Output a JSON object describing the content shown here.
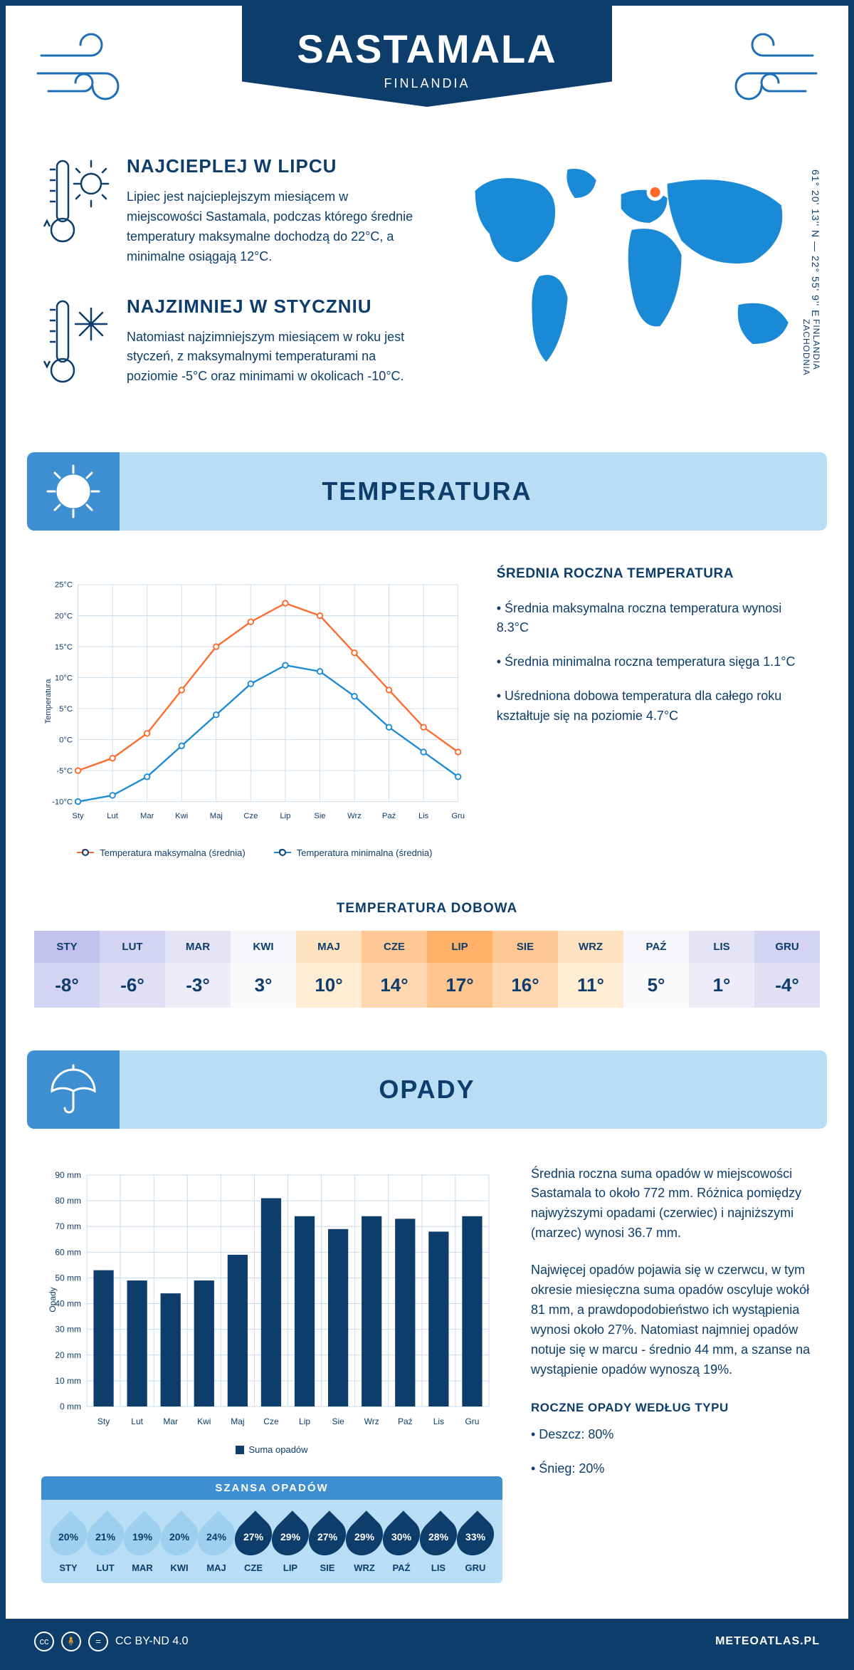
{
  "header": {
    "city": "SASTAMALA",
    "country": "FINLANDIA"
  },
  "coords": "61° 20' 13'' N — 22° 55' 9'' E",
  "region": "FINLANDIA ZACHODNIA",
  "map": {
    "land_color": "#1b8ad6",
    "marker_color": "#ff6a2b",
    "marker_border": "#ffffff"
  },
  "extremes": {
    "hottest": {
      "title": "NAJCIEPLEJ W LIPCU",
      "desc": "Lipiec jest najcieplejszym miesiącem w miejscowości Sastamala, podczas którego średnie temperatury maksymalne dochodzą do 22°C, a minimalne osiągają 12°C."
    },
    "coldest": {
      "title": "NAJZIMNIEJ W STYCZNIU",
      "desc": "Natomiast najzimniejszym miesiącem w roku jest styczeń, z maksymalnymi temperaturami na poziomie -5°C oraz minimami w okolicach -10°C."
    }
  },
  "temperature_section": {
    "title": "TEMPERATURA",
    "banner_bg": "#b8ddf5",
    "banner_icon_bg": "#3d8fd1",
    "chart": {
      "type": "line",
      "months": [
        "Sty",
        "Lut",
        "Mar",
        "Kwi",
        "Maj",
        "Cze",
        "Lip",
        "Sie",
        "Wrz",
        "Paź",
        "Lis",
        "Gru"
      ],
      "ylabel": "Temperatura",
      "ylim": [
        -10,
        25
      ],
      "ytick_step": 5,
      "ytick_suffix": "°C",
      "grid_color": "#c9dcea",
      "series": [
        {
          "name": "Temperatura maksymalna (średnia)",
          "color": "#ff6a2b",
          "values": [
            -5,
            -3,
            1,
            8,
            15,
            19,
            22,
            20,
            14,
            8,
            2,
            -2
          ]
        },
        {
          "name": "Temperatura minimalna (średnia)",
          "color": "#1b8ad6",
          "values": [
            -10,
            -9,
            -6,
            -1,
            4,
            9,
            12,
            11,
            7,
            2,
            -2,
            -6
          ]
        }
      ]
    },
    "annual": {
      "heading": "ŚREDNIA ROCZNA TEMPERATURA",
      "bullets": [
        "Średnia maksymalna roczna temperatura wynosi 8.3°C",
        "Średnia minimalna roczna temperatura sięga 1.1°C",
        "Uśredniona dobowa temperatura dla całego roku kształtuje się na poziomie 4.7°C"
      ]
    },
    "daily": {
      "title": "TEMPERATURA DOBOWA",
      "months": [
        "STY",
        "LUT",
        "MAR",
        "KWI",
        "MAJ",
        "CZE",
        "LIP",
        "SIE",
        "WRZ",
        "PAŹ",
        "LIS",
        "GRU"
      ],
      "values": [
        "-8°",
        "-6°",
        "-3°",
        "3°",
        "10°",
        "14°",
        "17°",
        "16°",
        "11°",
        "5°",
        "1°",
        "-4°"
      ],
      "header_colors": [
        "#c3c1ed",
        "#d4d3f1",
        "#e4e3f5",
        "#f5f5fa",
        "#ffe2c0",
        "#ffc794",
        "#ffb16a",
        "#ffc794",
        "#ffe2c0",
        "#f5f5fa",
        "#e4e3f5",
        "#d4d3f1"
      ],
      "value_colors": [
        "#d4d3f1",
        "#e0dff4",
        "#edecf8",
        "#fafafd",
        "#ffecd5",
        "#ffd8b1",
        "#ffc58f",
        "#ffd8b1",
        "#ffecd5",
        "#fafafd",
        "#edecf8",
        "#e0dff4"
      ]
    }
  },
  "precipitation_section": {
    "title": "OPADY",
    "chart": {
      "type": "bar",
      "months": [
        "Sty",
        "Lut",
        "Mar",
        "Kwi",
        "Maj",
        "Cze",
        "Lip",
        "Sie",
        "Wrz",
        "Paź",
        "Lis",
        "Gru"
      ],
      "ylabel": "Opady",
      "ylim": [
        0,
        90
      ],
      "ytick_step": 10,
      "ytick_suffix": " mm",
      "bar_color": "#0d3d6b",
      "grid_color": "#c9dcea",
      "values": [
        53,
        49,
        44,
        49,
        59,
        81,
        74,
        69,
        74,
        73,
        68,
        74
      ],
      "legend": "Suma opadów"
    },
    "paragraphs": [
      "Średnia roczna suma opadów w miejscowości Sastamala to około 772 mm. Różnica pomiędzy najwyższymi opadami (czerwiec) i najniższymi (marzec) wynosi 36.7 mm.",
      "Najwięcej opadów pojawia się w czerwcu, w tym okresie miesięczna suma opadów oscyluje wokół 81 mm, a prawdopodobieństwo ich wystąpienia wynosi około 27%. Natomiast najmniej opadów notuje się w marcu - średnio 44 mm, a szanse na wystąpienie opadów wynoszą 19%."
    ],
    "chance": {
      "title": "SZANSA OPADÓW",
      "months": [
        "STY",
        "LUT",
        "MAR",
        "KWI",
        "MAJ",
        "CZE",
        "LIP",
        "SIE",
        "WRZ",
        "PAŹ",
        "LIS",
        "GRU"
      ],
      "values": [
        "20%",
        "21%",
        "19%",
        "20%",
        "24%",
        "27%",
        "29%",
        "27%",
        "29%",
        "30%",
        "28%",
        "33%"
      ],
      "dark_threshold_index": 5,
      "light_fill": "#9cd0ee",
      "dark_fill": "#0d3d6b"
    },
    "by_type": {
      "heading": "ROCZNE OPADY WEDŁUG TYPU",
      "bullets": [
        "Deszcz: 80%",
        "Śnieg: 20%"
      ]
    }
  },
  "footer": {
    "license": "CC BY-ND 4.0",
    "site": "METEOATLAS.PL"
  },
  "palette": {
    "primary": "#0d3d6b",
    "accent": "#1b8ad6",
    "light": "#b8ddf5",
    "mid": "#3d8fd1"
  }
}
